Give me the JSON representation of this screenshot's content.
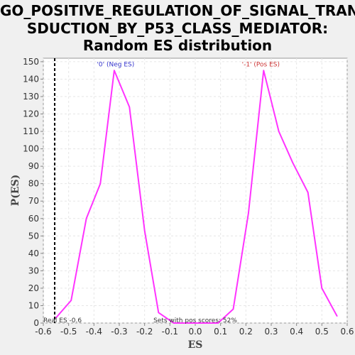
{
  "title_lines": [
    "GO_POSITIVE_REGULATION_OF_SIGNAL_TRAN",
    "SDUCTION_BY_P53_CLASS_MEDIATOR:",
    "Random ES distribution"
  ],
  "colors": {
    "line": "#ff33ff",
    "neg_label": "#3333cc",
    "pos_label": "#cc3333",
    "grid": "#e6e6e6",
    "plot_bg": "#ffffff",
    "page_bg": "#f0f0f0"
  },
  "chart_data": {
    "type": "line",
    "title": "GO_POSITIVE_REGULATION_OF_SIGNAL_TRANSDUCTION_BY_P53_CLASS_MEDIATOR: Random ES distribution",
    "xlabel": "ES",
    "ylabel": "P(ES)",
    "xlim": [
      -0.6,
      0.6
    ],
    "ylim": [
      0,
      152
    ],
    "xticks": [
      -0.6,
      -0.5,
      -0.4,
      -0.3,
      -0.2,
      -0.1,
      0.0,
      0.1,
      0.2,
      0.3,
      0.4,
      0.5,
      0.6
    ],
    "xtick_labels": [
      "-0.6",
      "-0.5",
      "-0.4",
      "-0.3",
      "-0.2",
      "-0.1",
      "0.0",
      "0.1",
      "0.2",
      "0.3",
      "0.4",
      "0.5",
      "0.6"
    ],
    "yticks": [
      0,
      10,
      20,
      30,
      40,
      50,
      60,
      70,
      80,
      90,
      100,
      110,
      120,
      130,
      140,
      150
    ],
    "ytick_labels": [
      "0",
      "10",
      "20",
      "30",
      "40",
      "50",
      "60",
      "70",
      "80",
      "90",
      "100",
      "110",
      "120",
      "130",
      "140",
      "150"
    ],
    "grid": true,
    "series": [
      {
        "x": [
          -0.55,
          -0.49,
          -0.43,
          -0.375,
          -0.32,
          -0.26,
          -0.2,
          -0.145,
          -0.085,
          -0.03,
          0.03,
          0.09,
          0.15,
          0.21,
          0.27,
          0.33,
          0.385,
          0.445,
          0.5,
          0.56
        ],
        "values": [
          3,
          13,
          60,
          80,
          145,
          124,
          53,
          6,
          0,
          0,
          0,
          0,
          8,
          63,
          145,
          110,
          92,
          75,
          20,
          4
        ]
      }
    ],
    "vline": {
      "x": -0.555,
      "style": "dashed",
      "label": "Real ES -0.6"
    },
    "annotations": [
      {
        "text": "'0' (Neg ES)",
        "x": -0.32,
        "y": 147,
        "color": "#3333cc"
      },
      {
        "text": "'-1' (Pos ES)",
        "x": 0.27,
        "y": 147,
        "color": "#cc3333"
      },
      {
        "text": "Sets with pos scores: 52%",
        "x": 0.0,
        "y": 1,
        "color": "#333333"
      }
    ]
  }
}
